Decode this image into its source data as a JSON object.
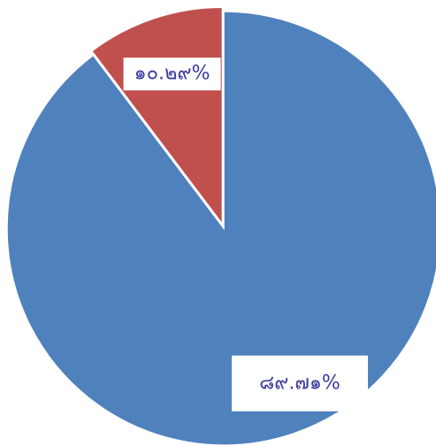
{
  "chart_data": {
    "type": "pie",
    "categories": [
      null,
      null
    ],
    "values": [
      89.71,
      10.29
    ],
    "value_labels": [
      "๘๙.๗๑%",
      "๑๐.๒๙%"
    ],
    "colors": [
      "#4f81bd",
      "#c0504d"
    ]
  }
}
